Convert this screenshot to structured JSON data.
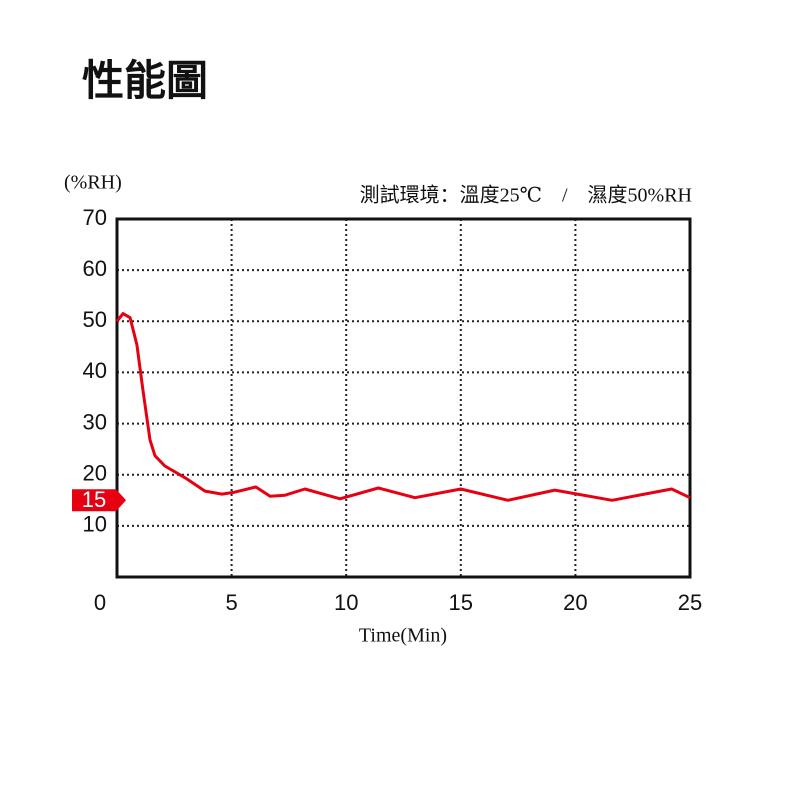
{
  "chart_data": {
    "type": "line",
    "title": "性能圖",
    "y_unit": "(%RH)",
    "condition": "測試環境：溫度25℃　/　濕度50%RH",
    "xlabel": "Time(Min)",
    "x": [
      0,
      0.26,
      0.57,
      0.87,
      1.13,
      1.44,
      1.66,
      2.09,
      2.97,
      3.84,
      4.58,
      5.15,
      6.06,
      6.68,
      7.33,
      8.2,
      9.73,
      11.4,
      13,
      15,
      17.06,
      19.1,
      21.6,
      24.2,
      25
    ],
    "series": [
      {
        "name": "RH",
        "color": "#e60012",
        "values": [
          50,
          51.5,
          50.7,
          45.4,
          36.6,
          26.8,
          23.7,
          21.7,
          19.4,
          16.8,
          16.2,
          16.6,
          17.6,
          15.8,
          16,
          17.2,
          15.3,
          17.4,
          15.5,
          17.2,
          15,
          17,
          15,
          17.2,
          15.5
        ]
      }
    ],
    "xlim": [
      0,
      25
    ],
    "xticks": [
      0,
      5,
      10,
      15,
      20,
      25
    ],
    "ylim": [
      0,
      70
    ],
    "yticks": [
      10,
      20,
      30,
      40,
      50,
      60,
      70
    ],
    "grid": true,
    "marker_value": 15
  }
}
